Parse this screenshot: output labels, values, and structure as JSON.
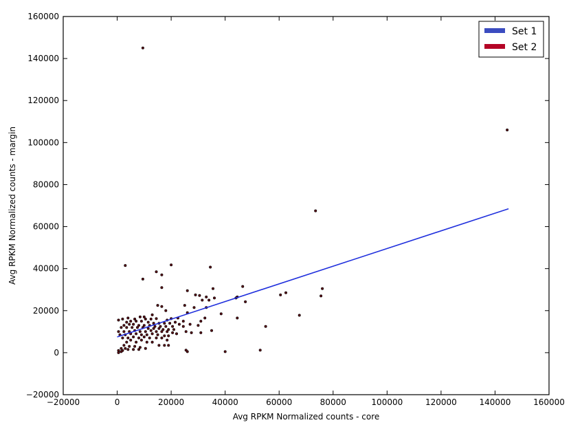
{
  "chart_data": {
    "type": "scatter",
    "title": "",
    "xlabel": "Avg RPKM Normalized counts - core",
    "ylabel": "Avg RPKM Normalized counts - margin",
    "xlim": [
      -20000,
      160000
    ],
    "ylim": [
      -20000,
      160000
    ],
    "xticks": [
      -20000,
      0,
      20000,
      40000,
      60000,
      80000,
      100000,
      120000,
      140000,
      160000
    ],
    "yticks": [
      -20000,
      0,
      20000,
      40000,
      60000,
      80000,
      100000,
      120000,
      140000,
      160000
    ],
    "xtick_labels": [
      "−20000",
      "0",
      "20000",
      "40000",
      "60000",
      "80000",
      "100000",
      "120000",
      "140000",
      "160000"
    ],
    "ytick_labels": [
      "−20000",
      "0",
      "20000",
      "40000",
      "60000",
      "80000",
      "100000",
      "120000",
      "140000",
      "160000"
    ],
    "grid": false,
    "legend_position": "top-right",
    "legend": [
      {
        "name": "Set 1",
        "color": "#3b4cc0"
      },
      {
        "name": "Set 2",
        "color": "#b40426"
      }
    ],
    "fit_line": {
      "color": "#2030dd",
      "x": [
        0,
        145000
      ],
      "y": [
        7500,
        68500
      ]
    },
    "series": [
      {
        "name": "Set 1",
        "color": "#3b4cc0",
        "points": [
          [
            9500,
            145000
          ],
          [
            144500,
            106000
          ],
          [
            73500,
            67500
          ],
          [
            3000,
            41500
          ],
          [
            20000,
            41800
          ],
          [
            34500,
            40700
          ],
          [
            14500,
            38500
          ],
          [
            16500,
            37000
          ],
          [
            9500,
            35000
          ],
          [
            46500,
            31500
          ],
          [
            16500,
            31000
          ],
          [
            76000,
            30500
          ],
          [
            35500,
            30500
          ],
          [
            26000,
            29500
          ],
          [
            62500,
            28500
          ],
          [
            60500,
            27500
          ],
          [
            29000,
            27500
          ],
          [
            30500,
            27200
          ],
          [
            75500,
            27000
          ],
          [
            44500,
            26500
          ],
          [
            44000,
            26000
          ],
          [
            33000,
            26500
          ],
          [
            36000,
            26000
          ],
          [
            34000,
            25000
          ],
          [
            31500,
            25000
          ],
          [
            47500,
            24200
          ],
          [
            15000,
            22500
          ],
          [
            16500,
            22000
          ],
          [
            25000,
            22500
          ],
          [
            33000,
            21500
          ],
          [
            28500,
            21500
          ],
          [
            18000,
            20000
          ],
          [
            26000,
            19000
          ],
          [
            38500,
            18500
          ],
          [
            67500,
            17800
          ],
          [
            13000,
            18000
          ],
          [
            8500,
            17000
          ],
          [
            10000,
            17000
          ],
          [
            2000,
            16000
          ],
          [
            4000,
            16500
          ],
          [
            6500,
            16000
          ],
          [
            10500,
            16000
          ],
          [
            12500,
            16000
          ],
          [
            14500,
            16200
          ],
          [
            20000,
            16200
          ],
          [
            18500,
            15500
          ],
          [
            22500,
            16500
          ],
          [
            32500,
            16500
          ],
          [
            44500,
            16500
          ],
          [
            31000,
            15000
          ],
          [
            24500,
            15000
          ],
          [
            500,
            15500
          ],
          [
            3500,
            14500
          ],
          [
            5000,
            15000
          ],
          [
            7000,
            15000
          ],
          [
            9000,
            15000
          ],
          [
            11500,
            14500
          ],
          [
            13500,
            14000
          ],
          [
            15500,
            14000
          ],
          [
            17500,
            14000
          ],
          [
            19500,
            14000
          ],
          [
            21500,
            14500
          ],
          [
            23000,
            13500
          ],
          [
            27000,
            13500
          ],
          [
            30000,
            13000
          ],
          [
            2500,
            13000
          ],
          [
            4500,
            13500
          ],
          [
            6000,
            13500
          ],
          [
            8000,
            13000
          ],
          [
            10000,
            13000
          ],
          [
            12000,
            13000
          ],
          [
            14000,
            12500
          ],
          [
            16000,
            12500
          ],
          [
            18000,
            12500
          ],
          [
            20500,
            12500
          ],
          [
            24500,
            12500
          ],
          [
            1500,
            12000
          ],
          [
            3500,
            12000
          ],
          [
            5500,
            12000
          ],
          [
            7500,
            12000
          ],
          [
            9500,
            12000
          ],
          [
            11500,
            11500
          ],
          [
            13500,
            11500
          ],
          [
            15500,
            11500
          ],
          [
            17000,
            11000
          ],
          [
            19000,
            11000
          ],
          [
            21000,
            11000
          ],
          [
            55000,
            12500
          ],
          [
            35000,
            10500
          ],
          [
            31000,
            9500
          ],
          [
            27500,
            9500
          ],
          [
            25500,
            10000
          ],
          [
            500,
            10000
          ],
          [
            2500,
            10000
          ],
          [
            4500,
            10000
          ],
          [
            6500,
            10500
          ],
          [
            8500,
            10000
          ],
          [
            10500,
            10000
          ],
          [
            12500,
            10500
          ],
          [
            14500,
            10000
          ],
          [
            16500,
            10000
          ],
          [
            18500,
            10000
          ],
          [
            20500,
            9500
          ],
          [
            1000,
            8500
          ],
          [
            3000,
            8500
          ],
          [
            5000,
            9000
          ],
          [
            7000,
            9000
          ],
          [
            9000,
            8500
          ],
          [
            11000,
            8500
          ],
          [
            13000,
            9000
          ],
          [
            15000,
            8500
          ],
          [
            17500,
            8000
          ],
          [
            19000,
            8000
          ],
          [
            22000,
            9000
          ],
          [
            2000,
            7000
          ],
          [
            4000,
            7000
          ],
          [
            6000,
            7500
          ],
          [
            8000,
            7000
          ],
          [
            10000,
            7500
          ],
          [
            12000,
            7000
          ],
          [
            14500,
            7000
          ],
          [
            16500,
            7000
          ],
          [
            18500,
            6000
          ],
          [
            5000,
            6000
          ],
          [
            9000,
            6000
          ],
          [
            11000,
            5000
          ],
          [
            3500,
            5000
          ],
          [
            7000,
            5000
          ],
          [
            13000,
            5000
          ],
          [
            15500,
            3500
          ],
          [
            17500,
            3500
          ],
          [
            19000,
            3500
          ],
          [
            2500,
            3500
          ],
          [
            4500,
            3000
          ],
          [
            6500,
            3000
          ],
          [
            8500,
            2500
          ],
          [
            10500,
            2000
          ],
          [
            1500,
            2000
          ],
          [
            3000,
            2000
          ],
          [
            4000,
            1500
          ],
          [
            6000,
            1500
          ],
          [
            8000,
            1500
          ],
          [
            500,
            1000
          ],
          [
            2000,
            1000
          ],
          [
            500,
            0
          ],
          [
            1500,
            500
          ],
          [
            26000,
            500
          ],
          [
            40000,
            500
          ],
          [
            53000,
            1200
          ],
          [
            25500,
            1200
          ]
        ]
      },
      {
        "name": "Set 2",
        "color": "#b40426",
        "points": []
      }
    ]
  }
}
